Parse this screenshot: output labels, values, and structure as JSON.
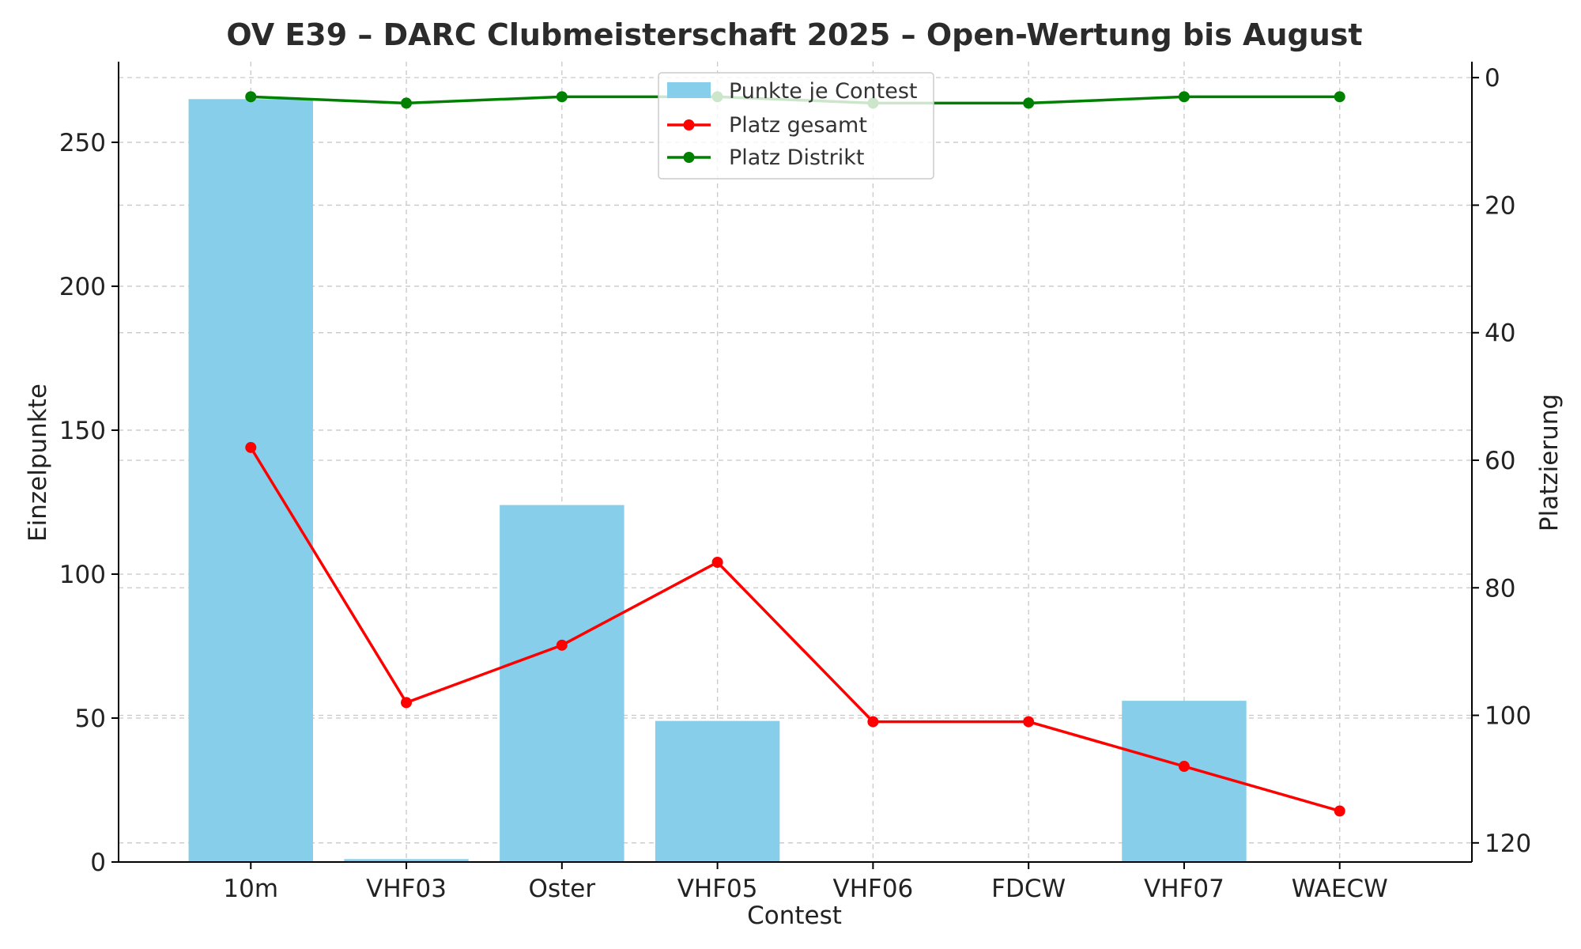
{
  "chart_data": {
    "type": "bar",
    "title": "OV E39 – DARC Clubmeisterschaft 2025 – Open-Wertung bis August",
    "xlabel": "Contest",
    "ylabel": "Einzelpunkte",
    "y2label": "Platzierung",
    "categories": [
      "10m",
      "VHF03",
      "Oster",
      "VHF05",
      "VHF06",
      "FDCW",
      "VHF07",
      "WAECW"
    ],
    "ylim": [
      0,
      278
    ],
    "yticks": [
      0,
      50,
      100,
      150,
      200,
      250
    ],
    "y2lim": [
      123,
      -2.5
    ],
    "y2ticks": [
      0,
      20,
      40,
      60,
      80,
      100,
      120
    ],
    "y2_inverted": true,
    "grid": true,
    "legend_position": "top-center",
    "series": [
      {
        "name": "Punkte je Contest",
        "kind": "bar",
        "axis": "left",
        "color": "#87ceeb",
        "values": [
          265,
          1,
          124,
          49,
          0,
          0,
          56,
          0
        ]
      },
      {
        "name": "Platz gesamt",
        "kind": "line",
        "axis": "right",
        "color": "#ff0000",
        "values": [
          58,
          98,
          89,
          76,
          101,
          101,
          108,
          115
        ]
      },
      {
        "name": "Platz Distrikt",
        "kind": "line",
        "axis": "right",
        "color": "#008000",
        "values": [
          3,
          4,
          3,
          3,
          4,
          4,
          3,
          3
        ]
      }
    ]
  }
}
